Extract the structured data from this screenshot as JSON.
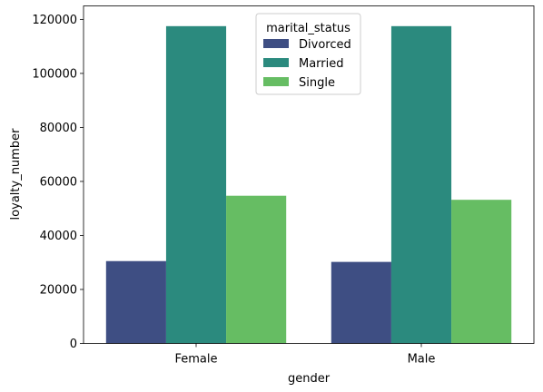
{
  "chart_data": {
    "type": "bar",
    "xlabel": "gender",
    "ylabel": "loyalty_number",
    "categories": [
      "Female",
      "Male"
    ],
    "ylim": [
      0,
      125000
    ],
    "yticks": [
      0,
      20000,
      40000,
      60000,
      80000,
      100000,
      120000
    ],
    "ytick_labels": [
      "0",
      "20000",
      "40000",
      "60000",
      "80000",
      "100000",
      "120000"
    ],
    "legend": {
      "title": "marital_status",
      "placement": "upper-center"
    },
    "series": [
      {
        "name": "Divorced",
        "color": "#3e4e83",
        "values": [
          30500,
          30200
        ]
      },
      {
        "name": "Married",
        "color": "#2b8a7e",
        "values": [
          117500,
          117500
        ]
      },
      {
        "name": "Single",
        "color": "#66bd63",
        "values": [
          54700,
          53200
        ]
      }
    ],
    "grid": false
  }
}
